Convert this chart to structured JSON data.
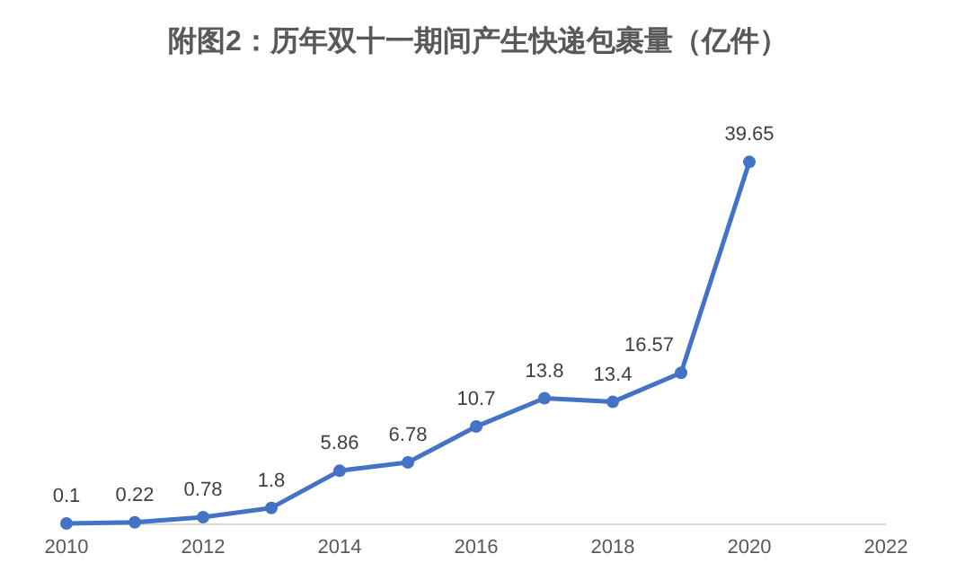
{
  "chart_data": {
    "type": "line",
    "title": "附图2：历年双十一期间产生快递包裹量（亿件）",
    "x": [
      2010,
      2011,
      2012,
      2013,
      2014,
      2015,
      2016,
      2017,
      2018,
      2019,
      2020
    ],
    "series": [
      {
        "color": "#4472c4",
        "values": [
          0.1,
          0.22,
          0.78,
          1.8,
          5.86,
          6.78,
          10.7,
          13.8,
          13.4,
          16.57,
          39.65
        ]
      }
    ],
    "xlim": [
      2010,
      2022
    ],
    "xticks": [
      2010,
      2012,
      2014,
      2016,
      2018,
      2020,
      2022
    ],
    "tick_labels": "x",
    "data_labels": true,
    "marker": "circle",
    "line_style": "solid"
  }
}
